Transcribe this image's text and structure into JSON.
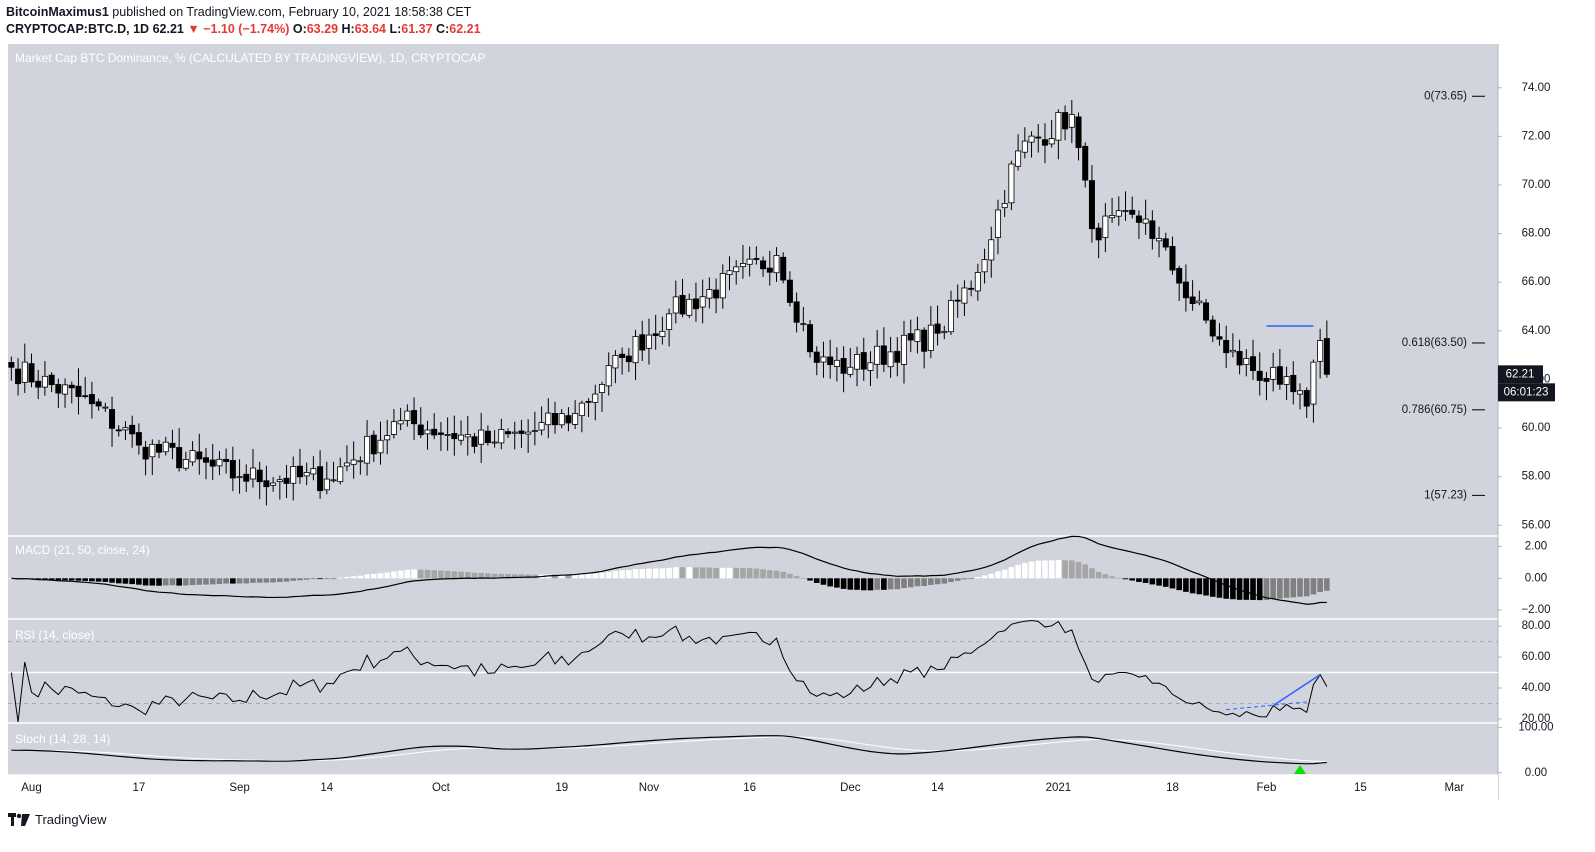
{
  "header": {
    "author": "BitcoinMaximus1",
    "published": "published on TradingView.com, February 10, 2021 18:58:38 CET",
    "symbol": "CRYPTOCAP:BTC.D, 1D",
    "last": "62.21",
    "change": "−1.10 (−1.74%)",
    "o_label": "O:",
    "o_value": "63.29",
    "h_label": "H:",
    "h_value": "63.64",
    "l_label": "L:",
    "l_value": "61.37",
    "c_label": "C:",
    "c_value": "62.21"
  },
  "footer": {
    "brand": "TradingView"
  },
  "colors": {
    "background": "#d1d4dc",
    "up": "#ffffff",
    "down": "#000000",
    "line": "#2962ff",
    "marker": "#00e600"
  },
  "chart_data": [
    {
      "type": "candlestick",
      "title": "Market Cap BTC Dominance, % (CALCULATED BY TRADINGVIEW), 1D, CRYPTOCAP",
      "ylim": [
        55.6,
        75.8
      ],
      "y_ticks": [
        "74.00",
        "72.00",
        "70.00",
        "68.00",
        "66.00",
        "64.00",
        "62.00",
        "60.00",
        "58.00",
        "56.00"
      ],
      "x_ticks": [
        "Aug",
        "17",
        "Sep",
        "14",
        "Oct",
        "19",
        "Nov",
        "16",
        "Dec",
        "14",
        "2021",
        "18",
        "Feb",
        "15",
        "Mar"
      ],
      "x_range": [
        "2020-07-29",
        "2021-03-08"
      ],
      "fib_levels": [
        {
          "label": "0(73.65)",
          "value": 73.65
        },
        {
          "label": "0.618(63.50)",
          "value": 63.5
        },
        {
          "label": "0.786(60.75)",
          "value": 60.75
        },
        {
          "label": "1(57.23)",
          "value": 57.23
        }
      ],
      "price_label": "62.21",
      "countdown_label": "06:01:23",
      "resistance_line": {
        "from": "2021-02-01",
        "to": "2021-02-08",
        "value": 64.2
      },
      "closes_key_points": [
        {
          "date": "2020-07-29",
          "close": 62.5
        },
        {
          "date": "2020-08-10",
          "close": 61.0
        },
        {
          "date": "2020-08-17",
          "close": 59.3
        },
        {
          "date": "2020-09-01",
          "close": 58.0
        },
        {
          "date": "2020-09-14",
          "close": 57.9
        },
        {
          "date": "2020-09-25",
          "close": 60.3
        },
        {
          "date": "2020-10-08",
          "close": 59.4
        },
        {
          "date": "2020-10-15",
          "close": 59.9
        },
        {
          "date": "2020-10-21",
          "close": 60.6
        },
        {
          "date": "2020-10-28",
          "close": 62.9
        },
        {
          "date": "2020-11-04",
          "close": 64.7
        },
        {
          "date": "2020-11-20",
          "close": 67.1
        },
        {
          "date": "2020-11-26",
          "close": 62.7
        },
        {
          "date": "2020-12-01",
          "close": 62.5
        },
        {
          "date": "2020-12-14",
          "close": 63.9
        },
        {
          "date": "2020-12-20",
          "close": 66.4
        },
        {
          "date": "2020-12-26",
          "close": 71.4
        },
        {
          "date": "2021-01-03",
          "close": 72.9
        },
        {
          "date": "2021-01-06",
          "close": 68.2
        },
        {
          "date": "2021-01-14",
          "close": 68.6
        },
        {
          "date": "2021-01-18",
          "close": 66.5
        },
        {
          "date": "2021-01-26",
          "close": 63.1
        },
        {
          "date": "2021-02-03",
          "close": 61.8
        },
        {
          "date": "2021-02-07",
          "close": 60.9
        },
        {
          "date": "2021-02-09",
          "close": 63.6
        },
        {
          "date": "2021-02-10",
          "close": 62.21
        }
      ]
    },
    {
      "type": "macd",
      "title": "MACD (21, 50, close, 24)",
      "y_ticks": [
        "2.00",
        "0.00",
        "−2.00"
      ],
      "ylim": [
        -2.5,
        2.6
      ]
    },
    {
      "type": "line",
      "title": "RSI (14, close)",
      "y_ticks": [
        "80.00",
        "60.00",
        "40.00",
        "20.00"
      ],
      "ylim": [
        18,
        84
      ],
      "levels": [
        70,
        50,
        30
      ]
    },
    {
      "type": "line",
      "title": "Stoch (14, 28, 14)",
      "y_ticks": [
        "100.00",
        "0.00"
      ],
      "ylim": [
        -5,
        108
      ]
    }
  ]
}
